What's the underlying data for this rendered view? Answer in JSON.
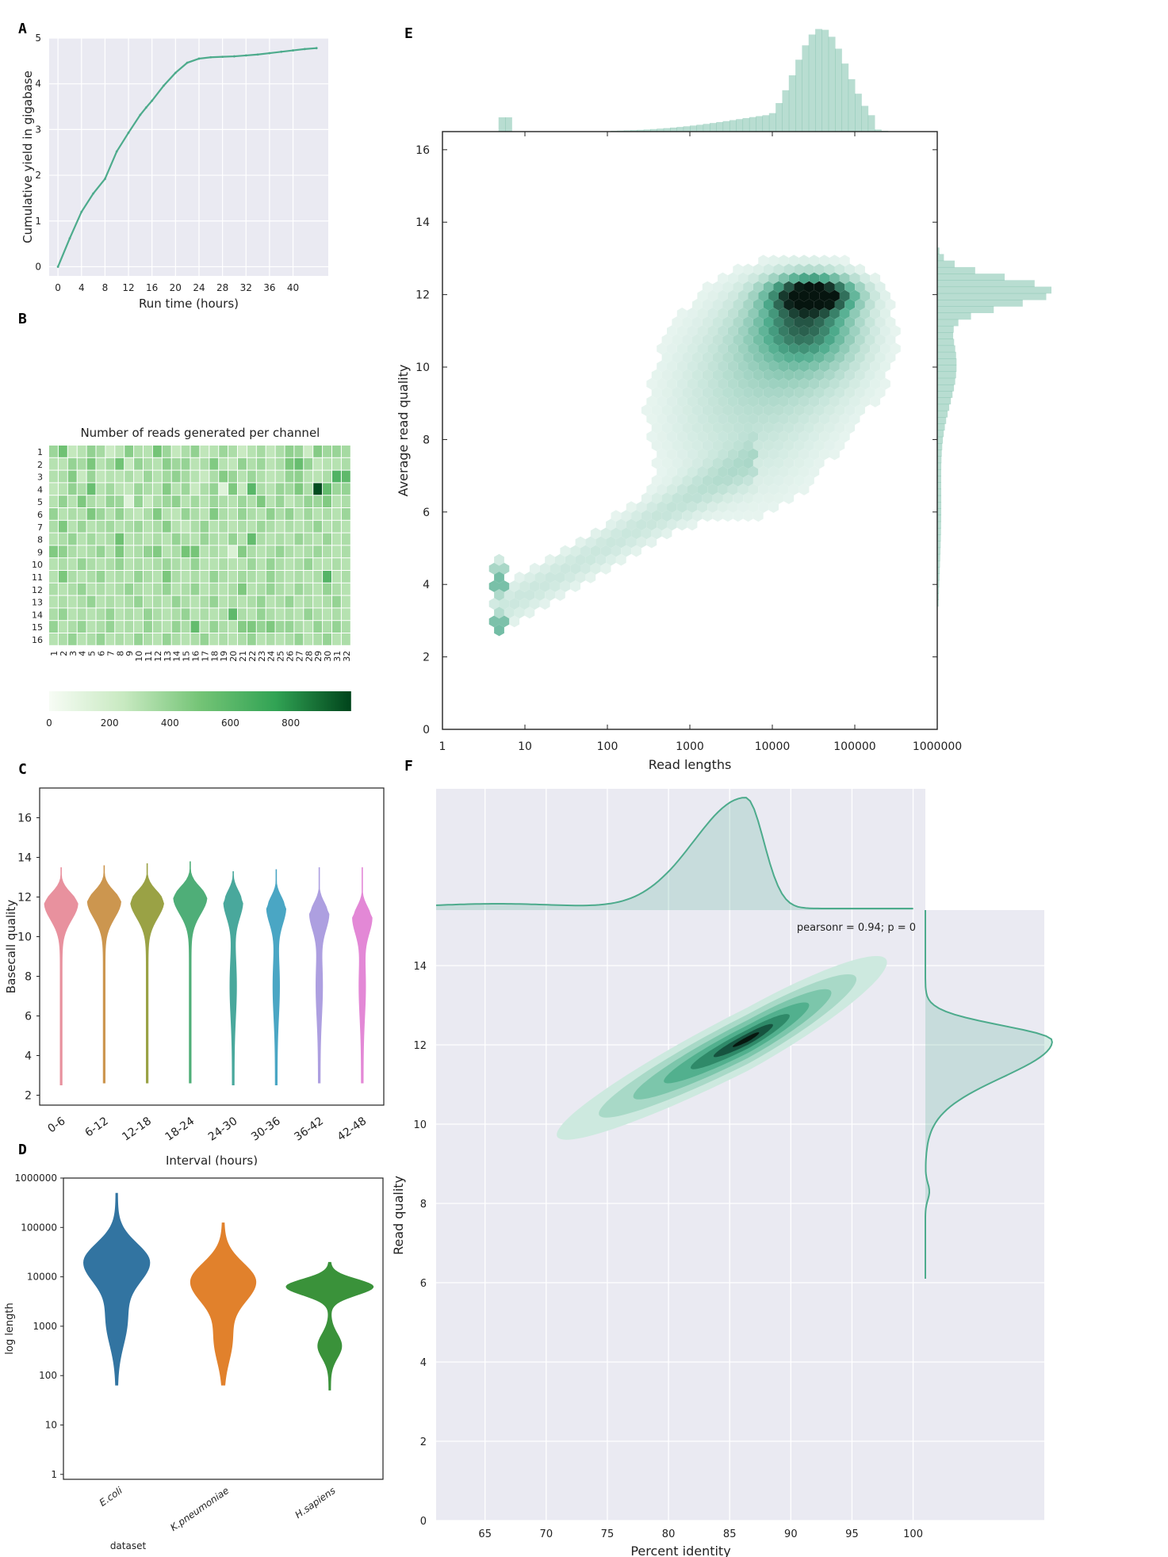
{
  "panel_letters": {
    "a": "A",
    "b": "B",
    "c": "C",
    "d": "D",
    "e": "E",
    "f": "F"
  },
  "colors": {
    "accent": "#4dab8c",
    "bg_grey": "#eaeaf2",
    "violin": [
      "#e8919e",
      "#cc964f",
      "#9aa245",
      "#4fae78",
      "#49a89c",
      "#4aa6c4",
      "#ad9fe0",
      "#e388d6"
    ],
    "length_violin": [
      "#3274a1",
      "#e1812c",
      "#3a923a"
    ]
  },
  "chart_data": [
    {
      "id": "A",
      "type": "line",
      "title": "",
      "xlabel": "Run time (hours)",
      "ylabel": "Cumulative yield in gigabase",
      "xlim": [
        -1.5,
        46
      ],
      "ylim": [
        -0.2,
        5
      ],
      "xticks": [
        "0",
        "4",
        "8",
        "12",
        "16",
        "20",
        "24",
        "28",
        "32",
        "36",
        "40"
      ],
      "yticks": [
        "0",
        "1",
        "2",
        "3",
        "4",
        "5"
      ],
      "x": [
        0,
        2,
        4,
        6,
        8,
        10,
        12,
        14,
        15,
        16,
        18,
        20,
        22,
        24,
        26,
        28,
        30,
        32,
        34,
        36,
        38,
        40,
        42,
        44
      ],
      "y": [
        0,
        0.62,
        1.2,
        1.6,
        1.92,
        2.52,
        2.93,
        3.32,
        3.48,
        3.63,
        3.96,
        4.24,
        4.46,
        4.55,
        4.58,
        4.59,
        4.6,
        4.62,
        4.64,
        4.67,
        4.7,
        4.73,
        4.76,
        4.78
      ]
    },
    {
      "id": "B",
      "type": "heatmap",
      "title": "Number of reads generated per channel",
      "rows": [
        "1",
        "2",
        "3",
        "4",
        "5",
        "6",
        "7",
        "8",
        "9",
        "10",
        "11",
        "12",
        "13",
        "14",
        "15",
        "16"
      ],
      "cols": [
        "1",
        "2",
        "3",
        "4",
        "5",
        "6",
        "7",
        "8",
        "9",
        "10",
        "11",
        "12",
        "13",
        "14",
        "15",
        "16",
        "17",
        "18",
        "19",
        "20",
        "21",
        "22",
        "23",
        "24",
        "25",
        "26",
        "27",
        "28",
        "29",
        "30",
        "31",
        "32"
      ],
      "colorbar_ticks": [
        "0",
        "200",
        "400",
        "600",
        "800"
      ],
      "vmax": 1000,
      "values": [
        [
          380,
          520,
          260,
          300,
          410,
          350,
          230,
          290,
          440,
          320,
          300,
          500,
          380,
          260,
          330,
          410,
          270,
          300,
          380,
          330,
          240,
          300,
          350,
          270,
          330,
          420,
          390,
          230,
          450,
          370,
          390,
          350
        ],
        [
          300,
          290,
          400,
          350,
          480,
          300,
          360,
          510,
          250,
          400,
          330,
          300,
          430,
          370,
          400,
          290,
          330,
          460,
          300,
          270,
          410,
          320,
          380,
          290,
          330,
          480,
          550,
          400,
          270,
          300,
          300,
          330
        ],
        [
          310,
          330,
          450,
          250,
          390,
          270,
          300,
          290,
          330,
          270,
          380,
          300,
          360,
          410,
          350,
          300,
          250,
          330,
          450,
          390,
          300,
          380,
          320,
          280,
          300,
          400,
          420,
          300,
          290,
          330,
          630,
          580
        ],
        [
          270,
          300,
          410,
          330,
          540,
          300,
          360,
          290,
          270,
          380,
          330,
          300,
          450,
          300,
          380,
          250,
          330,
          400,
          130,
          470,
          250,
          600,
          330,
          300,
          390,
          360,
          470,
          330,
          980,
          560,
          380,
          400
        ],
        [
          300,
          410,
          300,
          470,
          330,
          290,
          400,
          380,
          130,
          400,
          250,
          330,
          380,
          420,
          300,
          360,
          300,
          380,
          330,
          300,
          380,
          320,
          470,
          300,
          390,
          280,
          330,
          400,
          380,
          460,
          300,
          330
        ],
        [
          400,
          300,
          330,
          310,
          470,
          380,
          300,
          410,
          300,
          270,
          330,
          460,
          300,
          280,
          400,
          330,
          290,
          460,
          330,
          300,
          400,
          330,
          300,
          420,
          330,
          410,
          300,
          370,
          300,
          330,
          300,
          380
        ],
        [
          330,
          470,
          300,
          390,
          300,
          330,
          360,
          300,
          330,
          380,
          300,
          330,
          440,
          300,
          270,
          330,
          400,
          300,
          330,
          290,
          330,
          300,
          380,
          330,
          290,
          330,
          300,
          330,
          400,
          300,
          330,
          300
        ],
        [
          300,
          330,
          400,
          300,
          360,
          300,
          330,
          520,
          300,
          330,
          290,
          330,
          300,
          400,
          330,
          300,
          390,
          330,
          300,
          400,
          300,
          560,
          330,
          300,
          330,
          300,
          390,
          330,
          300,
          390,
          300,
          330
        ],
        [
          460,
          420,
          330,
          300,
          330,
          400,
          300,
          470,
          300,
          330,
          410,
          460,
          300,
          330,
          500,
          490,
          300,
          330,
          300,
          150,
          450,
          330,
          300,
          330,
          400,
          330,
          300,
          330,
          380,
          330,
          300,
          330
        ],
        [
          300,
          330,
          300,
          400,
          330,
          300,
          330,
          400,
          300,
          330,
          300,
          330,
          380,
          330,
          300,
          400,
          300,
          300,
          330,
          300,
          300,
          380,
          300,
          400,
          330,
          300,
          330,
          400,
          300,
          300,
          330,
          300
        ],
        [
          300,
          480,
          330,
          300,
          330,
          400,
          300,
          330,
          300,
          400,
          330,
          300,
          480,
          330,
          300,
          330,
          300,
          400,
          330,
          300,
          360,
          330,
          300,
          400,
          330,
          300,
          330,
          300,
          330,
          620,
          300,
          330
        ],
        [
          330,
          300,
          330,
          400,
          300,
          330,
          300,
          330,
          400,
          330,
          300,
          330,
          400,
          300,
          330,
          400,
          300,
          330,
          300,
          330,
          470,
          300,
          330,
          400,
          330,
          300,
          380,
          330,
          300,
          400,
          330,
          300
        ],
        [
          300,
          330,
          300,
          330,
          400,
          300,
          330,
          300,
          330,
          400,
          300,
          330,
          300,
          400,
          330,
          300,
          330,
          400,
          300,
          330,
          300,
          330,
          400,
          300,
          330,
          400,
          300,
          330,
          300,
          330,
          400,
          300
        ],
        [
          330,
          400,
          300,
          330,
          300,
          330,
          400,
          300,
          330,
          300,
          400,
          330,
          300,
          330,
          400,
          300,
          330,
          300,
          330,
          580,
          330,
          300,
          400,
          330,
          300,
          330,
          300,
          400,
          330,
          300,
          330,
          300
        ],
        [
          400,
          300,
          330,
          400,
          300,
          330,
          400,
          300,
          330,
          300,
          400,
          330,
          300,
          400,
          330,
          560,
          300,
          400,
          330,
          300,
          450,
          470,
          400,
          470,
          380,
          400,
          330,
          300,
          400,
          330,
          400,
          330
        ],
        [
          300,
          330,
          400,
          300,
          330,
          400,
          300,
          330,
          300,
          400,
          330,
          300,
          400,
          330,
          300,
          330,
          400,
          300,
          330,
          300,
          330,
          400,
          300,
          330,
          300,
          330,
          400,
          300,
          330,
          400,
          300,
          330
        ]
      ]
    },
    {
      "id": "C",
      "type": "violin",
      "xlabel": "Interval (hours)",
      "ylabel": "Basecall quality",
      "ylim": [
        1.5,
        17.5
      ],
      "yticks": [
        "2",
        "4",
        "6",
        "8",
        "10",
        "12",
        "14",
        "16"
      ],
      "categories": [
        "0-6",
        "6-12",
        "12-18",
        "18-24",
        "24-30",
        "30-36",
        "36-42",
        "42-48"
      ],
      "min": [
        2.5,
        2.6,
        2.6,
        2.6,
        2.5,
        2.5,
        2.6,
        2.6
      ],
      "max": [
        13.5,
        13.6,
        13.7,
        13.8,
        13.3,
        13.4,
        13.5,
        13.5
      ],
      "mode": [
        11.7,
        11.8,
        11.8,
        12.0,
        11.8,
        11.5,
        11.2,
        11.0
      ]
    },
    {
      "id": "D",
      "type": "violin",
      "xlabel": "dataset",
      "ylabel": "log length",
      "yticks": [
        "1",
        "10",
        "100",
        "1000",
        "10000",
        "100000",
        "1000000"
      ],
      "categories": [
        "E.coli",
        "K.pneumoniae",
        "H.sapiens"
      ],
      "min_log10": [
        1.8,
        1.8,
        1.7
      ],
      "max_log10": [
        5.7,
        5.1,
        4.3
      ],
      "mode_log10": [
        4.3,
        3.9,
        3.8
      ]
    },
    {
      "id": "E",
      "type": "hexbin",
      "xlabel": "Read lengths",
      "ylabel": "Average read quality",
      "xscale": "log",
      "xlim_log10": [
        0,
        6
      ],
      "ylim": [
        0,
        16.5
      ],
      "xticks": [
        "1",
        "10",
        "100",
        "1000",
        "10000",
        "100000",
        "1000000"
      ],
      "yticks": [
        "0",
        "2",
        "4",
        "6",
        "8",
        "10",
        "12",
        "14",
        "16"
      ],
      "density_peak": {
        "read_length": 30000,
        "quality": 12.1
      }
    },
    {
      "id": "F",
      "type": "kde",
      "xlabel": "Percent identity",
      "ylabel": "Read quality",
      "xlim": [
        61,
        101
      ],
      "ylim": [
        0,
        15.4
      ],
      "xticks": [
        "65",
        "70",
        "75",
        "80",
        "85",
        "90",
        "95",
        "100"
      ],
      "yticks": [
        "0",
        "2",
        "4",
        "6",
        "8",
        "10",
        "12",
        "14"
      ],
      "annotation": "pearsonr = 0.94; p = 0",
      "density_peak": {
        "percent_identity": 87,
        "quality": 12.2
      }
    }
  ]
}
